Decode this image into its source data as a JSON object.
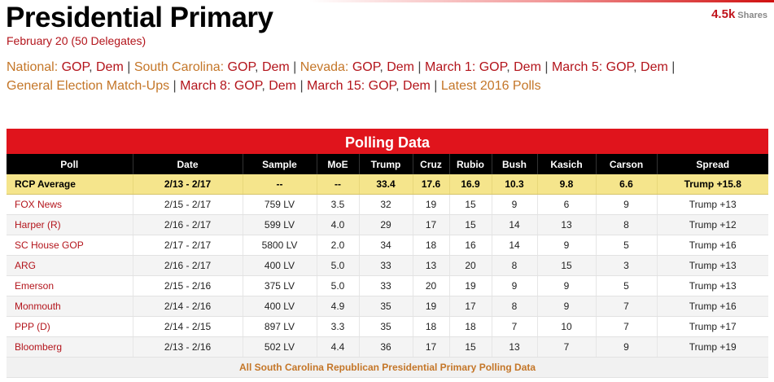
{
  "header": {
    "title": "Presidential Primary",
    "subtitle": "February 20 (50 Delegates)",
    "shares_count": "4.5k",
    "shares_label": "Shares"
  },
  "nav": {
    "groups": [
      {
        "label": "National: ",
        "links": [
          "GOP",
          "Dem"
        ]
      },
      {
        "label": "South Carolina: ",
        "links": [
          "GOP",
          "Dem"
        ]
      },
      {
        "label": "Nevada: ",
        "links": [
          "GOP",
          "Dem"
        ]
      },
      {
        "label": "",
        "links": [
          "March 1: GOP",
          "Dem"
        ]
      },
      {
        "label": "",
        "links": [
          "March 5: GOP",
          "Dem"
        ]
      },
      {
        "label": "General Election Match-Ups",
        "links": []
      },
      {
        "label": "",
        "links": [
          "March 8: GOP",
          "Dem"
        ]
      },
      {
        "label": "",
        "links": [
          "March 15: GOP",
          "Dem"
        ]
      },
      {
        "label": "Latest 2016 Polls",
        "links": []
      }
    ],
    "separator": " | ",
    "link_separator": ", "
  },
  "table": {
    "caption": "Polling Data",
    "columns": [
      "Poll",
      "Date",
      "Sample",
      "MoE",
      "Trump",
      "Cruz",
      "Rubio",
      "Bush",
      "Kasich",
      "Carson",
      "Spread"
    ],
    "average": [
      "RCP Average",
      "2/13 - 2/17",
      "--",
      "--",
      "33.4",
      "17.6",
      "16.9",
      "10.3",
      "9.8",
      "6.6",
      "Trump +15.8"
    ],
    "rows": [
      [
        "FOX News",
        "2/15 - 2/17",
        "759 LV",
        "3.5",
        "32",
        "19",
        "15",
        "9",
        "6",
        "9",
        "Trump +13"
      ],
      [
        "Harper (R)",
        "2/16 - 2/17",
        "599 LV",
        "4.0",
        "29",
        "17",
        "15",
        "14",
        "13",
        "8",
        "Trump +12"
      ],
      [
        "SC House GOP",
        "2/17 - 2/17",
        "5800 LV",
        "2.0",
        "34",
        "18",
        "16",
        "14",
        "9",
        "5",
        "Trump +16"
      ],
      [
        "ARG",
        "2/16 - 2/17",
        "400 LV",
        "5.0",
        "33",
        "13",
        "20",
        "8",
        "15",
        "3",
        "Trump +13"
      ],
      [
        "Emerson",
        "2/15 - 2/16",
        "375 LV",
        "5.0",
        "33",
        "20",
        "19",
        "9",
        "9",
        "5",
        "Trump +13"
      ],
      [
        "Monmouth",
        "2/14 - 2/16",
        "400 LV",
        "4.9",
        "35",
        "19",
        "17",
        "8",
        "9",
        "7",
        "Trump +16"
      ],
      [
        "PPP (D)",
        "2/14 - 2/15",
        "897 LV",
        "3.3",
        "35",
        "18",
        "18",
        "7",
        "10",
        "7",
        "Trump +17"
      ],
      [
        "Bloomberg",
        "2/13 - 2/16",
        "502 LV",
        "4.4",
        "36",
        "17",
        "15",
        "13",
        "7",
        "9",
        "Trump +19"
      ]
    ],
    "footer_link": "All South Carolina Republican Presidential Primary Polling Data"
  }
}
